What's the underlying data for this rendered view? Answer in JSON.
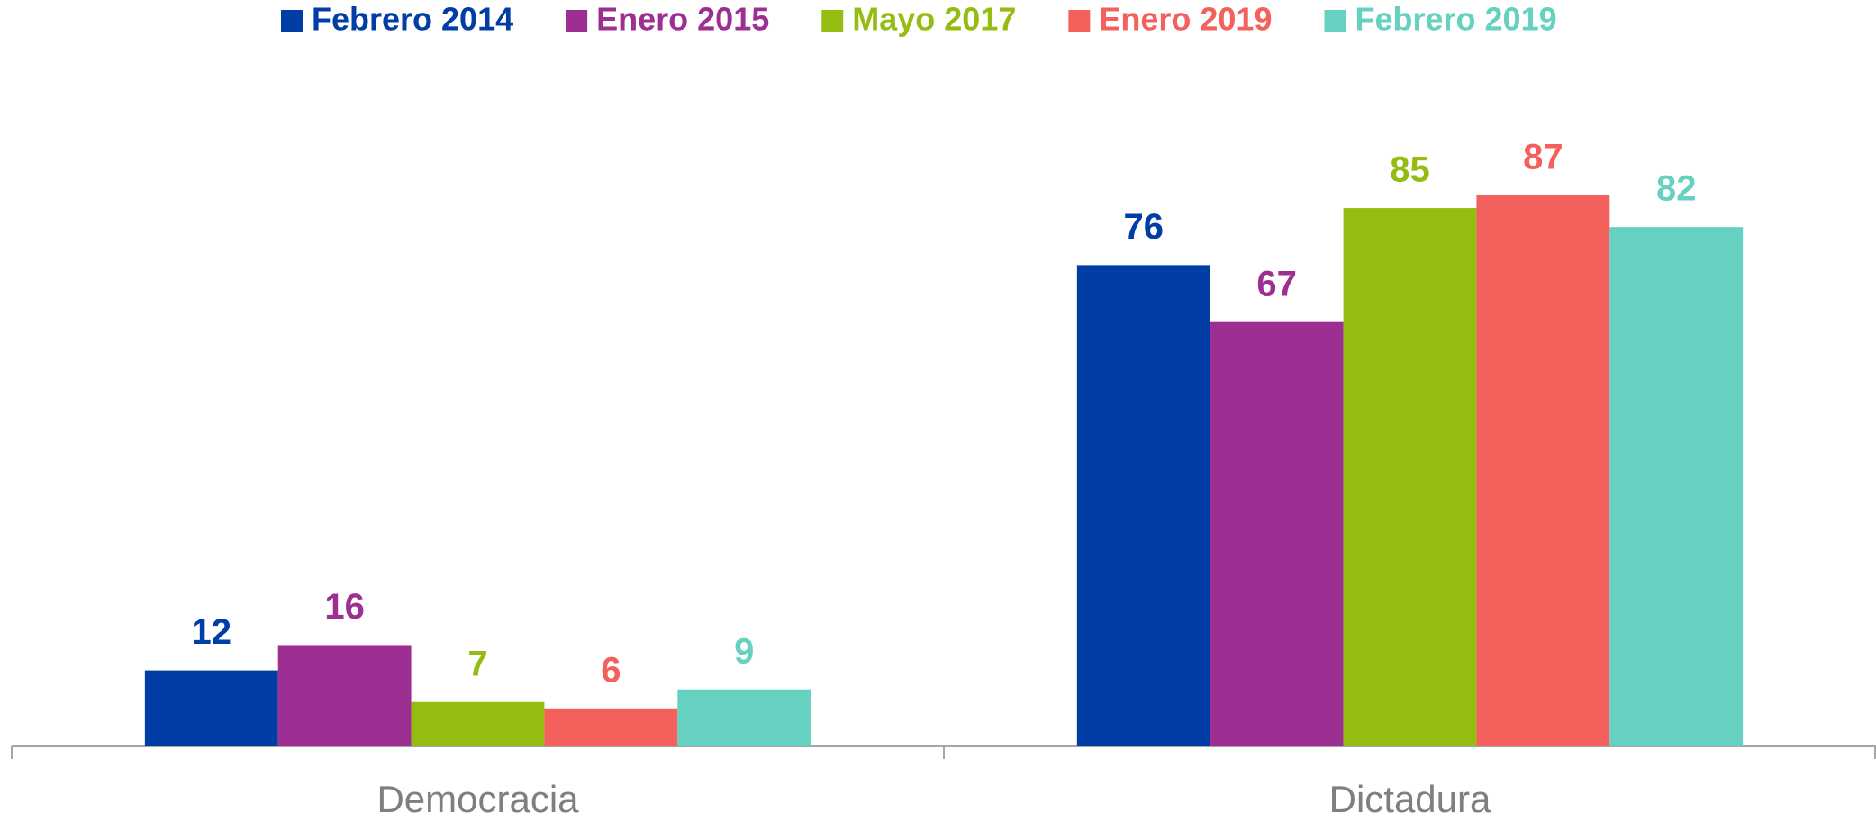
{
  "chart_data": {
    "type": "bar",
    "categories": [
      "Democracia",
      "Dictadura"
    ],
    "series": [
      {
        "name": "Febrero 2014",
        "color": "#003da5",
        "values": [
          12,
          76
        ]
      },
      {
        "name": "Enero 2015",
        "color": "#9c2f91",
        "values": [
          16,
          67
        ]
      },
      {
        "name": "Mayo 2017",
        "color": "#95bd11",
        "values": [
          7,
          85
        ]
      },
      {
        "name": "Enero 2019",
        "color": "#f4615d",
        "values": [
          6,
          87
        ]
      },
      {
        "name": "Febrero 2019",
        "color": "#66d1c1",
        "values": [
          9,
          82
        ]
      }
    ],
    "legend": "top",
    "grid": false
  }
}
